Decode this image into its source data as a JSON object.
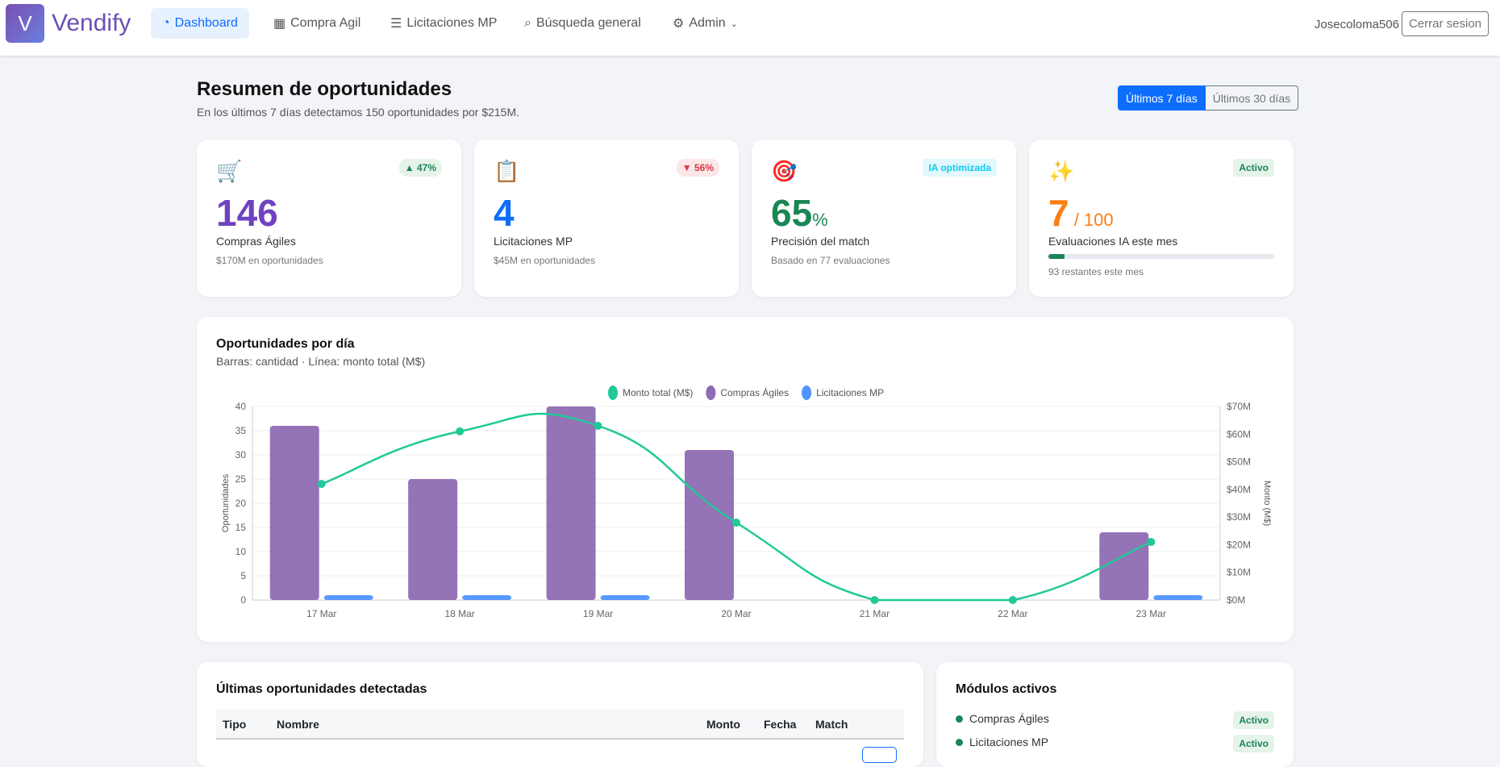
{
  "nav": {
    "logo_letter": "V",
    "brand": "Vendify",
    "items": [
      {
        "label": "Dashboard",
        "icon": "gauge-icon"
      },
      {
        "label": "Compra Agil",
        "icon": "grid-icon"
      },
      {
        "label": "Licitaciones MP",
        "icon": "list-icon"
      },
      {
        "label": "Búsqueda general",
        "icon": "search-icon"
      },
      {
        "label": "Admin",
        "icon": "gear-icon"
      }
    ],
    "user": "Josecoloma506",
    "logout": "Cerrar sesion"
  },
  "header": {
    "title": "Resumen de oportunidades",
    "subtitle": "En los últimos 7 días detectamos 150 oportunidades por $215M.",
    "ranges": [
      "Últimos 7 días",
      "Últimos 30 días"
    ]
  },
  "kpis": [
    {
      "icon": "🛒",
      "badge": "▲ 47%",
      "value": "146",
      "label": "Compras Ágiles",
      "note": "$170M en oportunidades"
    },
    {
      "icon": "📋",
      "badge": "▼ 56%",
      "value": "4",
      "label": "Licitaciones MP",
      "note": "$45M en oportunidades"
    },
    {
      "icon": "🎯",
      "badge": "IA optimizada",
      "value": "65",
      "suffix": "%",
      "label": "Precisión del match",
      "note": "Basado en 77 evaluaciones"
    },
    {
      "icon": "✨",
      "badge": "Activo",
      "value": "7",
      "suffix": " / 100",
      "label": "Evaluaciones IA este mes",
      "note": "93 restantes este mes",
      "progress": 0.07
    }
  ],
  "chart_card": {
    "title": "Oportunidades por día",
    "subtitle": "Barras: cantidad · Línea: monto total (M$)"
  },
  "chart_data": {
    "type": "bar",
    "categories": [
      "17 Mar",
      "18 Mar",
      "19 Mar",
      "20 Mar",
      "21 Mar",
      "22 Mar",
      "23 Mar"
    ],
    "series": [
      {
        "name": "Monto total (M$)",
        "type": "line",
        "axis": "right",
        "color": "#20c997",
        "values": [
          42,
          61,
          63,
          28,
          0,
          0,
          21
        ]
      },
      {
        "name": "Compras Ágiles",
        "type": "bar",
        "axis": "left",
        "color": "#8e6bb3",
        "values": [
          36,
          25,
          40,
          31,
          0,
          0,
          14
        ]
      },
      {
        "name": "Licitaciones MP",
        "type": "bar",
        "axis": "left",
        "color": "#4f94ff",
        "values": [
          1,
          1,
          1,
          0,
          0,
          0,
          1
        ]
      }
    ],
    "ylabel": "Oportunidades",
    "y2label": "Monto (M$)",
    "ylim": [
      0,
      40
    ],
    "y2lim": [
      0,
      70
    ],
    "yticks": [
      "0",
      "5",
      "10",
      "15",
      "20",
      "25",
      "30",
      "35",
      "40"
    ],
    "y2ticks": [
      "$0M",
      "$10M",
      "$20M",
      "$30M",
      "$40M",
      "$50M",
      "$60M",
      "$70M"
    ],
    "legend": "top-center",
    "grid": true
  },
  "latest": {
    "title": "Últimas oportunidades detectadas",
    "columns": [
      "Tipo",
      "Nombre",
      "Monto",
      "Fecha",
      "Match"
    ]
  },
  "modules": {
    "title": "Módulos activos",
    "items": [
      {
        "name": "Compras Ágiles",
        "status": "Activo"
      },
      {
        "name": "Licitaciones MP",
        "status": "Activo"
      }
    ]
  }
}
